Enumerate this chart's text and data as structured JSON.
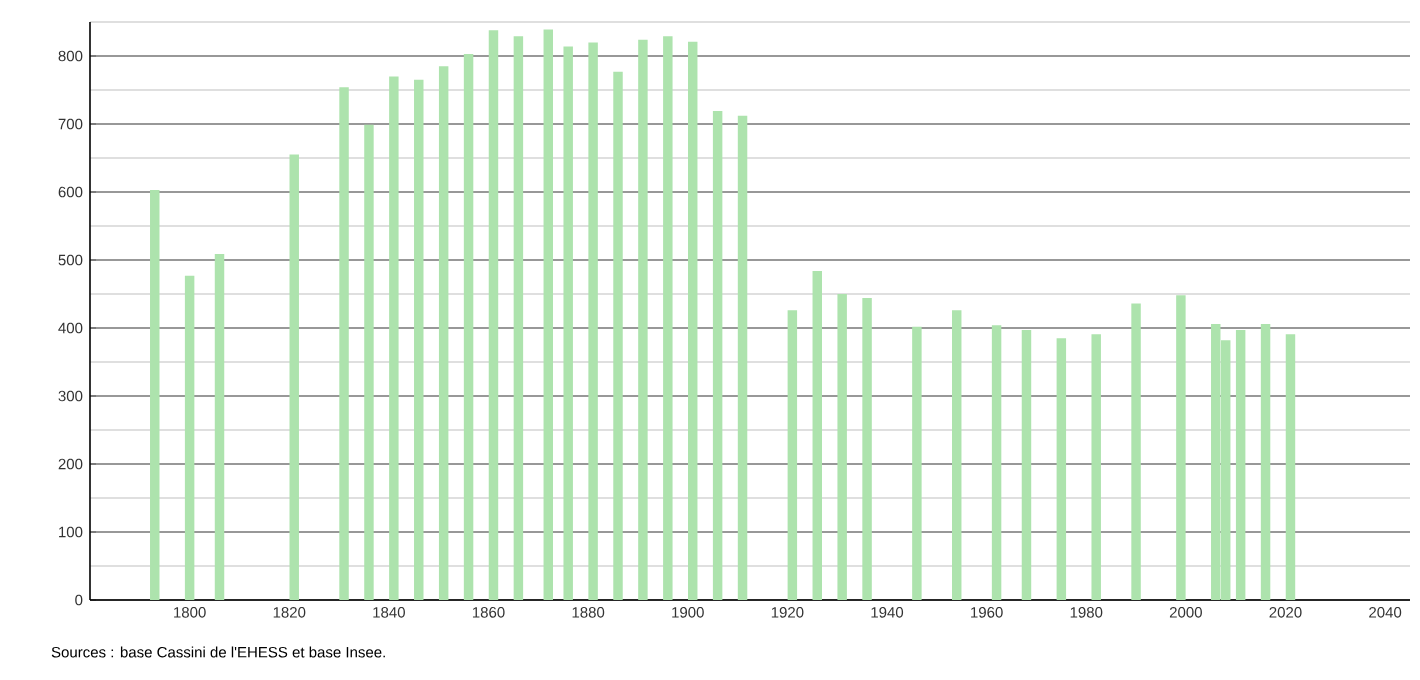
{
  "chart_data": {
    "type": "bar",
    "x": [
      1793,
      1800,
      1806,
      1821,
      1831,
      1836,
      1841,
      1846,
      1851,
      1856,
      1861,
      1866,
      1872,
      1876,
      1881,
      1886,
      1891,
      1896,
      1901,
      1906,
      1911,
      1921,
      1926,
      1931,
      1936,
      1946,
      1954,
      1962,
      1968,
      1975,
      1982,
      1990,
      1999,
      2006,
      2008,
      2011,
      2016,
      2021
    ],
    "values": [
      603,
      477,
      509,
      655,
      754,
      699,
      770,
      765,
      785,
      803,
      838,
      829,
      839,
      814,
      820,
      777,
      824,
      829,
      821,
      719,
      712,
      426,
      484,
      450,
      444,
      402,
      426,
      404,
      397,
      385,
      391,
      436,
      448,
      406,
      382,
      397,
      406,
      391
    ],
    "color": "#ade3ad",
    "xlim": [
      1780,
      2045
    ],
    "ylim": [
      0,
      850
    ],
    "xticks": [
      1800,
      1820,
      1840,
      1860,
      1880,
      1900,
      1920,
      1940,
      1960,
      1980,
      2000,
      2020,
      2040
    ],
    "yticks": [
      0,
      {
        "value": 50,
        "label": null
      },
      100,
      {
        "value": 150,
        "label": null
      },
      200,
      {
        "value": 250,
        "label": null
      },
      300,
      {
        "value": 350,
        "label": null
      },
      400,
      {
        "value": 450,
        "label": null
      },
      500,
      {
        "value": 550,
        "label": null
      },
      600,
      {
        "value": 650,
        "label": null
      },
      700,
      {
        "value": 750,
        "label": null
      },
      800,
      {
        "value": 850,
        "label": null
      }
    ],
    "grid": "y",
    "annotations": [
      "Sources : base Cassini de l'EHESS et base Insee."
    ]
  }
}
